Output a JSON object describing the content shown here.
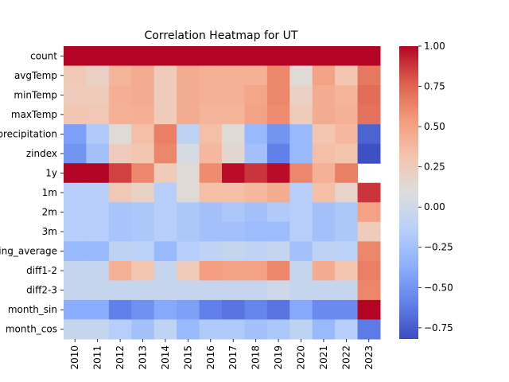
{
  "chart_data": {
    "type": "heatmap",
    "title": "Correlation Heatmap for UT",
    "colormap": "coolwarm",
    "vmin": -0.82,
    "vmax": 1.0,
    "x_labels": [
      "2010",
      "2011",
      "2012",
      "2013",
      "2014",
      "2015",
      "2016",
      "2017",
      "2018",
      "2019",
      "2020",
      "2021",
      "2022",
      "2023"
    ],
    "y_labels": [
      "count",
      "avgTemp",
      "minTemp",
      "maxTemp",
      "precipitation",
      "zindex",
      "1y",
      "1m",
      "2m",
      "3m",
      "rolling_average",
      "diff1-2",
      "diff2-3",
      "month_sin",
      "month_cos"
    ],
    "values": [
      [
        1.0,
        1.0,
        1.0,
        1.0,
        1.0,
        1.0,
        1.0,
        1.0,
        1.0,
        1.0,
        1.0,
        1.0,
        1.0,
        1.0
      ],
      [
        0.27,
        0.2,
        0.4,
        0.45,
        0.25,
        0.45,
        0.42,
        0.42,
        0.42,
        0.62,
        0.12,
        0.5,
        0.3,
        0.68
      ],
      [
        0.25,
        0.25,
        0.43,
        0.45,
        0.25,
        0.45,
        0.42,
        0.42,
        0.48,
        0.62,
        0.2,
        0.45,
        0.4,
        0.72
      ],
      [
        0.3,
        0.28,
        0.42,
        0.43,
        0.25,
        0.45,
        0.4,
        0.4,
        0.5,
        0.6,
        0.25,
        0.45,
        0.42,
        0.7
      ],
      [
        -0.45,
        -0.18,
        0.12,
        0.35,
        0.65,
        -0.1,
        0.35,
        0.12,
        -0.3,
        -0.5,
        -0.3,
        0.3,
        0.38,
        -0.72
      ],
      [
        -0.5,
        -0.25,
        0.25,
        0.3,
        0.62,
        0.05,
        0.38,
        0.15,
        -0.25,
        -0.6,
        -0.3,
        0.35,
        0.32,
        -0.8
      ],
      [
        1.0,
        1.0,
        0.85,
        0.62,
        0.25,
        0.12,
        0.6,
        0.98,
        0.88,
        0.98,
        0.62,
        0.42,
        0.65,
        null
      ],
      [
        -0.15,
        -0.15,
        0.28,
        0.2,
        -0.15,
        0.12,
        0.35,
        0.35,
        0.38,
        0.45,
        -0.15,
        0.35,
        0.18,
        0.88
      ],
      [
        -0.15,
        -0.15,
        -0.22,
        -0.2,
        -0.15,
        -0.2,
        -0.25,
        -0.2,
        -0.25,
        -0.18,
        -0.15,
        -0.25,
        -0.2,
        0.5
      ],
      [
        -0.15,
        -0.15,
        -0.22,
        -0.2,
        -0.15,
        -0.2,
        -0.25,
        -0.25,
        -0.28,
        -0.28,
        -0.15,
        -0.25,
        -0.2,
        0.25
      ],
      [
        -0.3,
        -0.3,
        -0.1,
        -0.12,
        -0.3,
        -0.15,
        -0.08,
        -0.05,
        -0.08,
        -0.05,
        -0.25,
        -0.1,
        -0.12,
        0.62
      ],
      [
        -0.05,
        -0.05,
        0.42,
        0.3,
        -0.05,
        0.25,
        0.52,
        0.5,
        0.5,
        0.62,
        -0.05,
        0.45,
        0.3,
        0.65
      ],
      [
        -0.05,
        -0.05,
        -0.05,
        -0.05,
        -0.05,
        -0.05,
        -0.05,
        -0.05,
        -0.05,
        0.0,
        -0.05,
        -0.05,
        -0.05,
        0.62
      ],
      [
        -0.38,
        -0.38,
        -0.6,
        -0.52,
        -0.4,
        -0.45,
        -0.6,
        -0.65,
        -0.58,
        -0.65,
        -0.4,
        -0.55,
        -0.55,
        1.0
      ],
      [
        -0.05,
        -0.05,
        -0.15,
        -0.25,
        -0.08,
        -0.3,
        -0.18,
        -0.18,
        -0.25,
        -0.2,
        -0.1,
        -0.3,
        -0.15,
        -0.62
      ]
    ],
    "colorbar": {
      "ticks": [
        1.0,
        0.75,
        0.5,
        0.25,
        0.0,
        -0.25,
        -0.5,
        -0.75
      ],
      "tick_labels": [
        "1.00",
        "0.75",
        "0.50",
        "0.25",
        "0.00",
        "−0.25",
        "−0.50",
        "−0.75"
      ]
    }
  }
}
